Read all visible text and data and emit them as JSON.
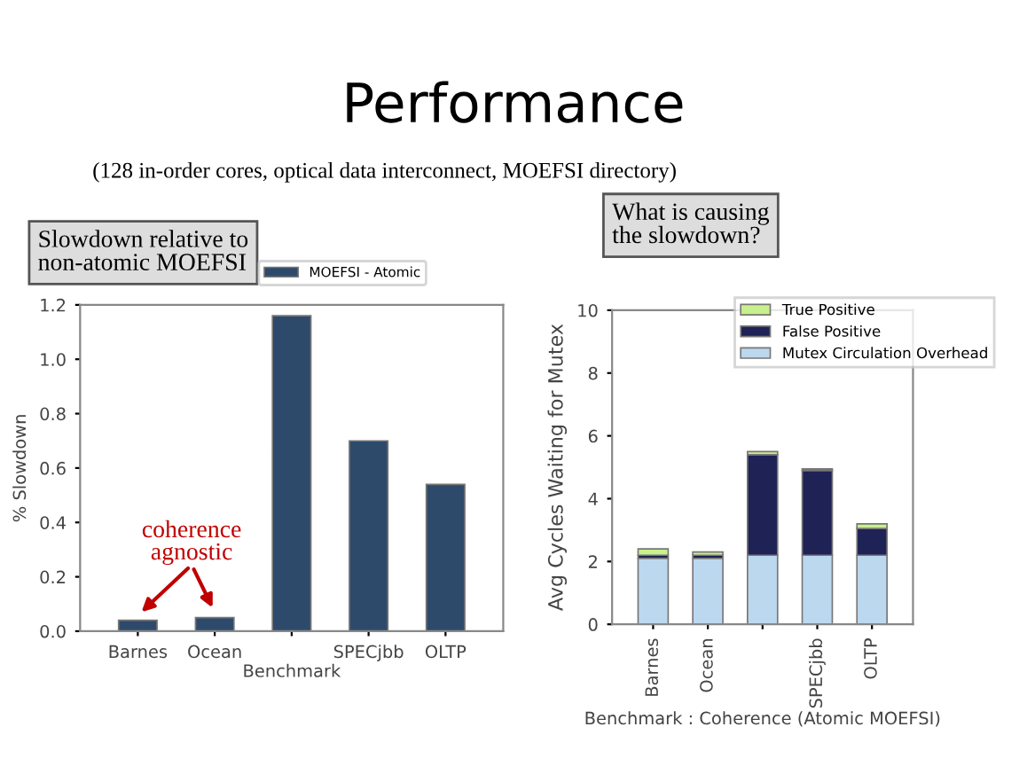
{
  "chart_data": [
    {
      "type": "bar",
      "title": "Performance",
      "subtitle": "(128 in-order cores, optical data interconnect, MOEFSI directory)",
      "xlabel": "Benchmark",
      "ylabel": "% Slowdown",
      "categories": [
        "Barnes",
        "Ocean",
        null,
        "SPECjbb",
        "OLTP"
      ],
      "series": [
        {
          "name": "MOEFSI - Atomic",
          "color": "#2e4a6b",
          "values": [
            0.04,
            0.05,
            1.16,
            0.7,
            0.54
          ]
        }
      ],
      "ylim": [
        0,
        1.2
      ],
      "yticks": [
        {
          "value": 0,
          "label": "0.0"
        },
        0.2,
        0.4,
        0.6,
        0.8,
        {
          "value": 1,
          "label": "1.0"
        },
        1.2
      ],
      "legend": "top",
      "annotations": [
        "Slowdown relative to non-atomic MOEFSI",
        {
          "text": "coherence agnostic",
          "x": "Barnes",
          "y": 0.04
        }
      ]
    },
    {
      "type": "bar",
      "stacked": true,
      "xlabel": "Benchmark : Coherence (Atomic MOEFSI)",
      "ylabel": "Avg Cycles Waiting for Mutex",
      "categories": [
        "Barnes",
        "Ocean",
        null,
        "SPECjbb",
        "OLTP"
      ],
      "series": [
        {
          "name": "Mutex Circulation Overhead",
          "color": "#bcd8ef",
          "values": [
            2.1,
            2.1,
            2.2,
            2.2,
            2.2
          ]
        },
        {
          "name": "False Positive",
          "color": "#1f2255",
          "values": [
            0.1,
            0.1,
            3.2,
            2.7,
            0.85
          ]
        },
        {
          "name": "True Positive",
          "color": "#c8f08c",
          "values": [
            0.2,
            0.1,
            0.1,
            0.05,
            0.15
          ]
        }
      ],
      "ylim": [
        0,
        10
      ],
      "yticks": [
        0,
        2,
        4,
        6,
        8,
        10
      ],
      "legend": "top right",
      "annotations": [
        "What is causing the slowdown?"
      ]
    }
  ]
}
